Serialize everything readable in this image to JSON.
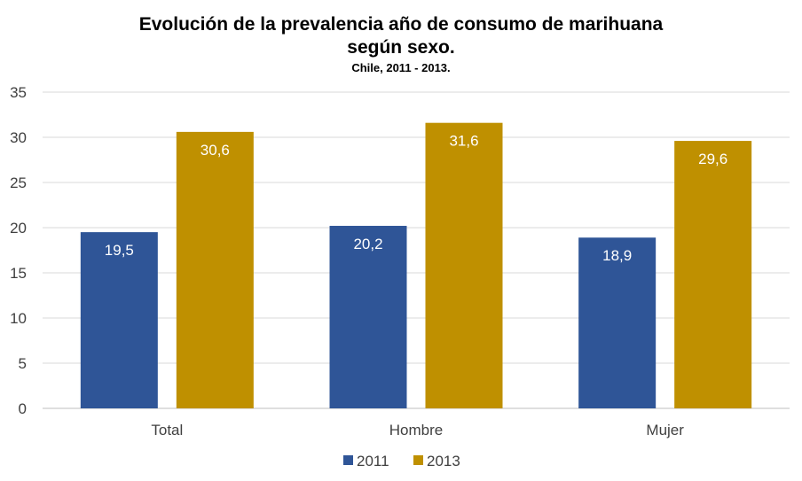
{
  "chart_data": {
    "type": "bar",
    "title": "Evolución de la prevalencia año de consumo de marihuana",
    "title_line2": "según sexo.",
    "subtitle": "Chile, 2011 - 2013.",
    "categories": [
      "Total",
      "Hombre",
      "Mujer"
    ],
    "series": [
      {
        "name": "2011",
        "values": [
          19.5,
          20.2,
          18.9
        ],
        "labels": [
          "19,5",
          "20,2",
          "18,9"
        ],
        "color": "#2F5597"
      },
      {
        "name": "2013",
        "values": [
          30.6,
          31.6,
          29.6
        ],
        "labels": [
          "30,6",
          "31,6",
          "29,6"
        ],
        "color": "#BF9000"
      }
    ],
    "ylim": [
      0,
      35
    ],
    "yticks": [
      0,
      5,
      10,
      15,
      20,
      25,
      30,
      35
    ],
    "xlabel": "",
    "ylabel": "",
    "grid": true,
    "legend_position": "bottom"
  }
}
